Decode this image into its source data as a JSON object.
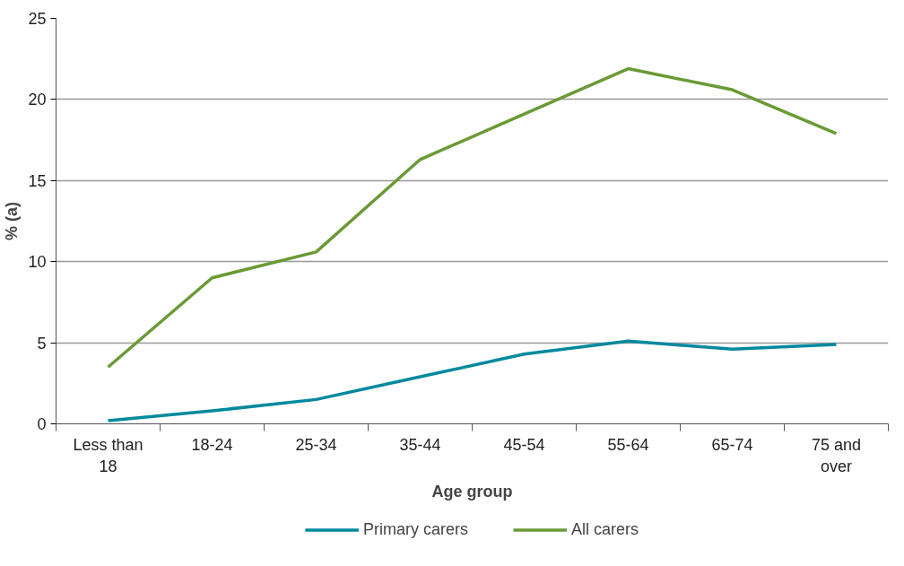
{
  "chart_data": {
    "type": "line",
    "xlabel": "Age group",
    "ylabel": "% (a)",
    "categories": [
      "Less than 18",
      "18-24",
      "25-34",
      "35-44",
      "45-54",
      "55-64",
      "65-74",
      "75 and over"
    ],
    "series": [
      {
        "name": "Primary carers",
        "color": "#00899e",
        "values": [
          0.2,
          0.8,
          1.5,
          2.9,
          4.3,
          5.1,
          4.6,
          4.9
        ]
      },
      {
        "name": "All carers",
        "color": "#6a9a35",
        "values": [
          3.5,
          9.0,
          10.6,
          16.3,
          19.1,
          21.9,
          20.6,
          17.9
        ]
      }
    ],
    "ylim": [
      0,
      25
    ],
    "yticks": [
      0,
      5,
      10,
      15,
      20,
      25
    ],
    "grid": "y",
    "legend": "bottom",
    "marker": "none",
    "line_style": "solid"
  }
}
